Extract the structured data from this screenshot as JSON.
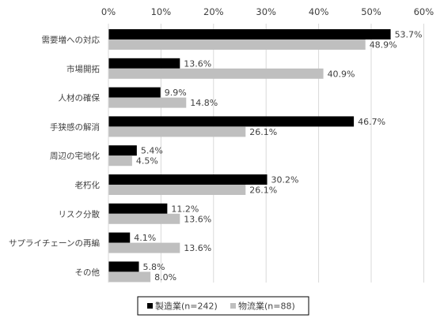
{
  "chart_data": {
    "type": "bar",
    "orientation": "horizontal",
    "categories": [
      "需要増への対応",
      "市場開拓",
      "人材の確保",
      "手狭感の解消",
      "周辺の宅地化",
      "老朽化",
      "リスク分散",
      "サプライチェーンの再編",
      "その他"
    ],
    "series": [
      {
        "name": "製造業(n=242)",
        "values": [
          53.7,
          13.6,
          9.9,
          46.7,
          5.4,
          30.2,
          11.2,
          4.1,
          5.8
        ],
        "labels": [
          "53.7%",
          "13.6%",
          "9.9%",
          "46.7%",
          "5.4%",
          "30.2%",
          "11.2%",
          "4.1%",
          "5.8%"
        ]
      },
      {
        "name": "物流業(n=88)",
        "values": [
          48.9,
          40.9,
          14.8,
          26.1,
          4.5,
          26.1,
          13.6,
          13.6,
          8.0
        ],
        "labels": [
          "48.9%",
          "40.9%",
          "14.8%",
          "26.1%",
          "4.5%",
          "26.1%",
          "13.6%",
          "13.6%",
          "8.0%"
        ]
      }
    ],
    "x_ticks": [
      "0%",
      "10%",
      "20%",
      "30%",
      "40%",
      "50%",
      "60%"
    ],
    "xlim": [
      0,
      60
    ],
    "xaxis_position": "top",
    "grid": true,
    "legend_position": "bottom"
  },
  "colors": {
    "series": [
      "#000000",
      "#bfbfbf"
    ],
    "grid": "#d9d9d9",
    "text": "#404040"
  }
}
